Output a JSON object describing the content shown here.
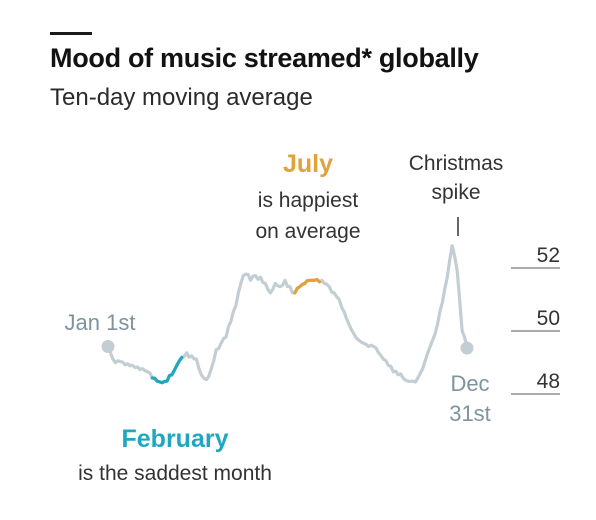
{
  "header": {
    "title": "Mood of music streamed* globally",
    "subtitle": "Ten-day moving average"
  },
  "colors": {
    "line": "#c2ced3",
    "february": "#1fa7c0",
    "july": "#e2a23b",
    "axis_text": "#333333",
    "label_grey": "#7d949e",
    "annotation": "#333333"
  },
  "annotations": {
    "july": {
      "head": "July",
      "line1": "is happiest",
      "line2": "on average"
    },
    "february": {
      "head": "February",
      "line1": "is the saddest month"
    },
    "christmas": {
      "line1": "Christmas",
      "line2": "spike"
    },
    "start": "Jan 1st",
    "end": {
      "line1": "Dec",
      "line2": "31st"
    }
  },
  "chart_data": {
    "type": "line",
    "title": "Mood of music streamed* globally",
    "subtitle": "Ten-day moving average",
    "xlabel": "",
    "ylabel": "",
    "ylim": [
      47.6,
      52.6
    ],
    "yticks": [
      48,
      50,
      52
    ],
    "grid": false,
    "x_range": [
      "Jan 1st",
      "Dec 31st"
    ],
    "series": [
      {
        "values": [
          49.0,
          48.6,
          48.55,
          48.5,
          48.45,
          48.4,
          48.35,
          48.3,
          48.2,
          48.0,
          47.9,
          47.85,
          47.9,
          48.1,
          48.4,
          48.65,
          48.8,
          48.7,
          48.6,
          48.1,
          47.95,
          48.3,
          48.9,
          49.1,
          49.3,
          49.8,
          50.3,
          51.0,
          51.3,
          51.1,
          51.25,
          51.2,
          51.0,
          50.7,
          51.0,
          50.9,
          51.1,
          50.9,
          50.7,
          50.9,
          51.0,
          51.1,
          51.1,
          51.05,
          51.0,
          50.9,
          50.7,
          50.5,
          50.1,
          49.7,
          49.4,
          49.2,
          49.1,
          49.0,
          49.0,
          48.8,
          48.6,
          48.4,
          48.2,
          48.1,
          48.0,
          47.9,
          47.9,
          48.0,
          48.3,
          48.8,
          49.2,
          49.7,
          50.4,
          51.2,
          52.2,
          51.4,
          49.5,
          48.95
        ]
      }
    ],
    "highlights": [
      {
        "label": "February",
        "start_index": 9,
        "end_index": 15
      },
      {
        "label": "July",
        "start_index": 38,
        "end_index": 43
      }
    ],
    "source_note": "*"
  }
}
